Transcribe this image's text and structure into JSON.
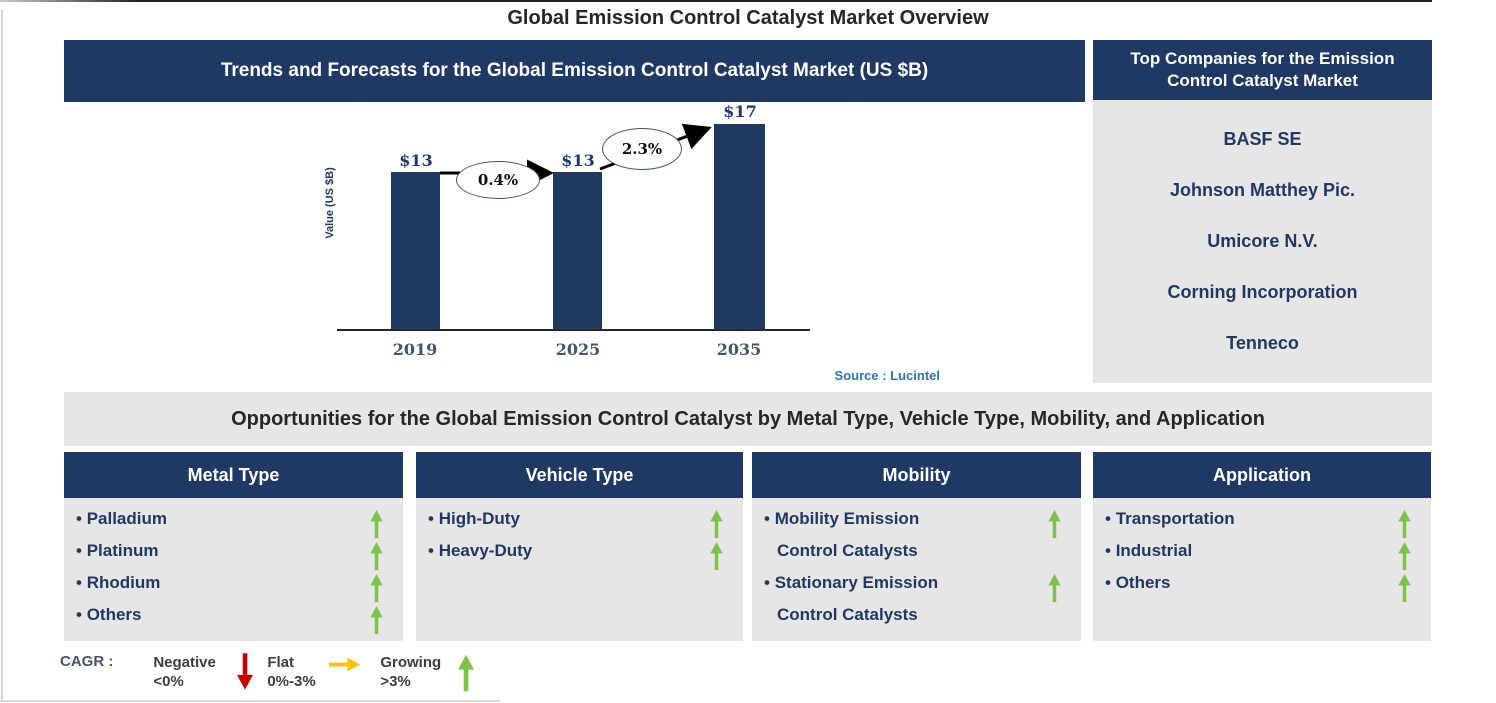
{
  "title": "Global Emission Control Catalyst Market Overview",
  "trends": {
    "header": "Trends and Forecasts for the Global Emission Control Catalyst Market (US $B)",
    "source": "Source : Lucintel"
  },
  "chart_data": {
    "type": "bar",
    "title": "Trends and Forecasts for the Global Emission Control Catalyst Market (US $B)",
    "categories": [
      "2019",
      "2025",
      "2035"
    ],
    "values": [
      13,
      13,
      17
    ],
    "bar_labels": [
      "$13",
      "$13",
      "$17"
    ],
    "annotations": [
      {
        "label": "0.4%",
        "between": [
          "2019",
          "2025"
        ],
        "meaning": "CAGR 2019-2025"
      },
      {
        "label": "2.3%",
        "between": [
          "2025",
          "2035"
        ],
        "meaning": "CAGR 2025-2035"
      }
    ],
    "xlabel": "",
    "ylabel": "Value (US $B)",
    "ylim": [
      0,
      18
    ],
    "grid": false,
    "legend_position": "none",
    "bar_color": "#20395F",
    "source": "Source : Lucintel"
  },
  "top_companies": {
    "header": "Top Companies for the Emission Control Catalyst Market",
    "items": [
      "BASF SE",
      "Johnson Matthey Pic.",
      "Umicore N.V.",
      "Corning Incorporation",
      "Tenneco"
    ]
  },
  "opportunities": {
    "header": "Opportunities for the Global Emission Control Catalyst by Metal Type, Vehicle Type, Mobility, and Application",
    "columns": [
      {
        "title": "Metal Type",
        "items": [
          {
            "text": "Palladium",
            "trend": "growing"
          },
          {
            "text": "Platinum",
            "trend": "growing"
          },
          {
            "text": "Rhodium",
            "trend": "growing"
          },
          {
            "text": "Others",
            "trend": "growing"
          }
        ]
      },
      {
        "title": "Vehicle Type",
        "items": [
          {
            "text": "High-Duty",
            "trend": "growing"
          },
          {
            "text": "Heavy-Duty",
            "trend": "growing"
          }
        ]
      },
      {
        "title": "Mobility",
        "items": [
          {
            "text": "Mobility Emission",
            "text2": "Control Catalysts",
            "trend": "growing"
          },
          {
            "text": "Stationary Emission",
            "text2": "Control Catalysts",
            "trend": "growing"
          }
        ]
      },
      {
        "title": "Application",
        "items": [
          {
            "text": "Transportation",
            "trend": "growing"
          },
          {
            "text": "Industrial",
            "trend": "growing"
          },
          {
            "text": "Others",
            "trend": "growing"
          }
        ]
      }
    ]
  },
  "legend": {
    "prefix": "CAGR :",
    "items": [
      {
        "label": "Negative",
        "range": "<0%",
        "icon": "down-arrow",
        "color": "#C00000"
      },
      {
        "label": "Flat",
        "range": "0%-3%",
        "icon": "right-arrow",
        "color": "#FFC000"
      },
      {
        "label": "Growing",
        "range": ">3%",
        "icon": "up-arrow",
        "color": "#7CC24B"
      }
    ]
  },
  "colors": {
    "navy": "#1F3864",
    "bar_navy": "#20395F",
    "panel_gray": "#E7E6E6",
    "growing_green": "#7CC24B",
    "negative_red": "#C00000",
    "flat_amber": "#FFC000",
    "source_blue": "#2E74B5"
  }
}
